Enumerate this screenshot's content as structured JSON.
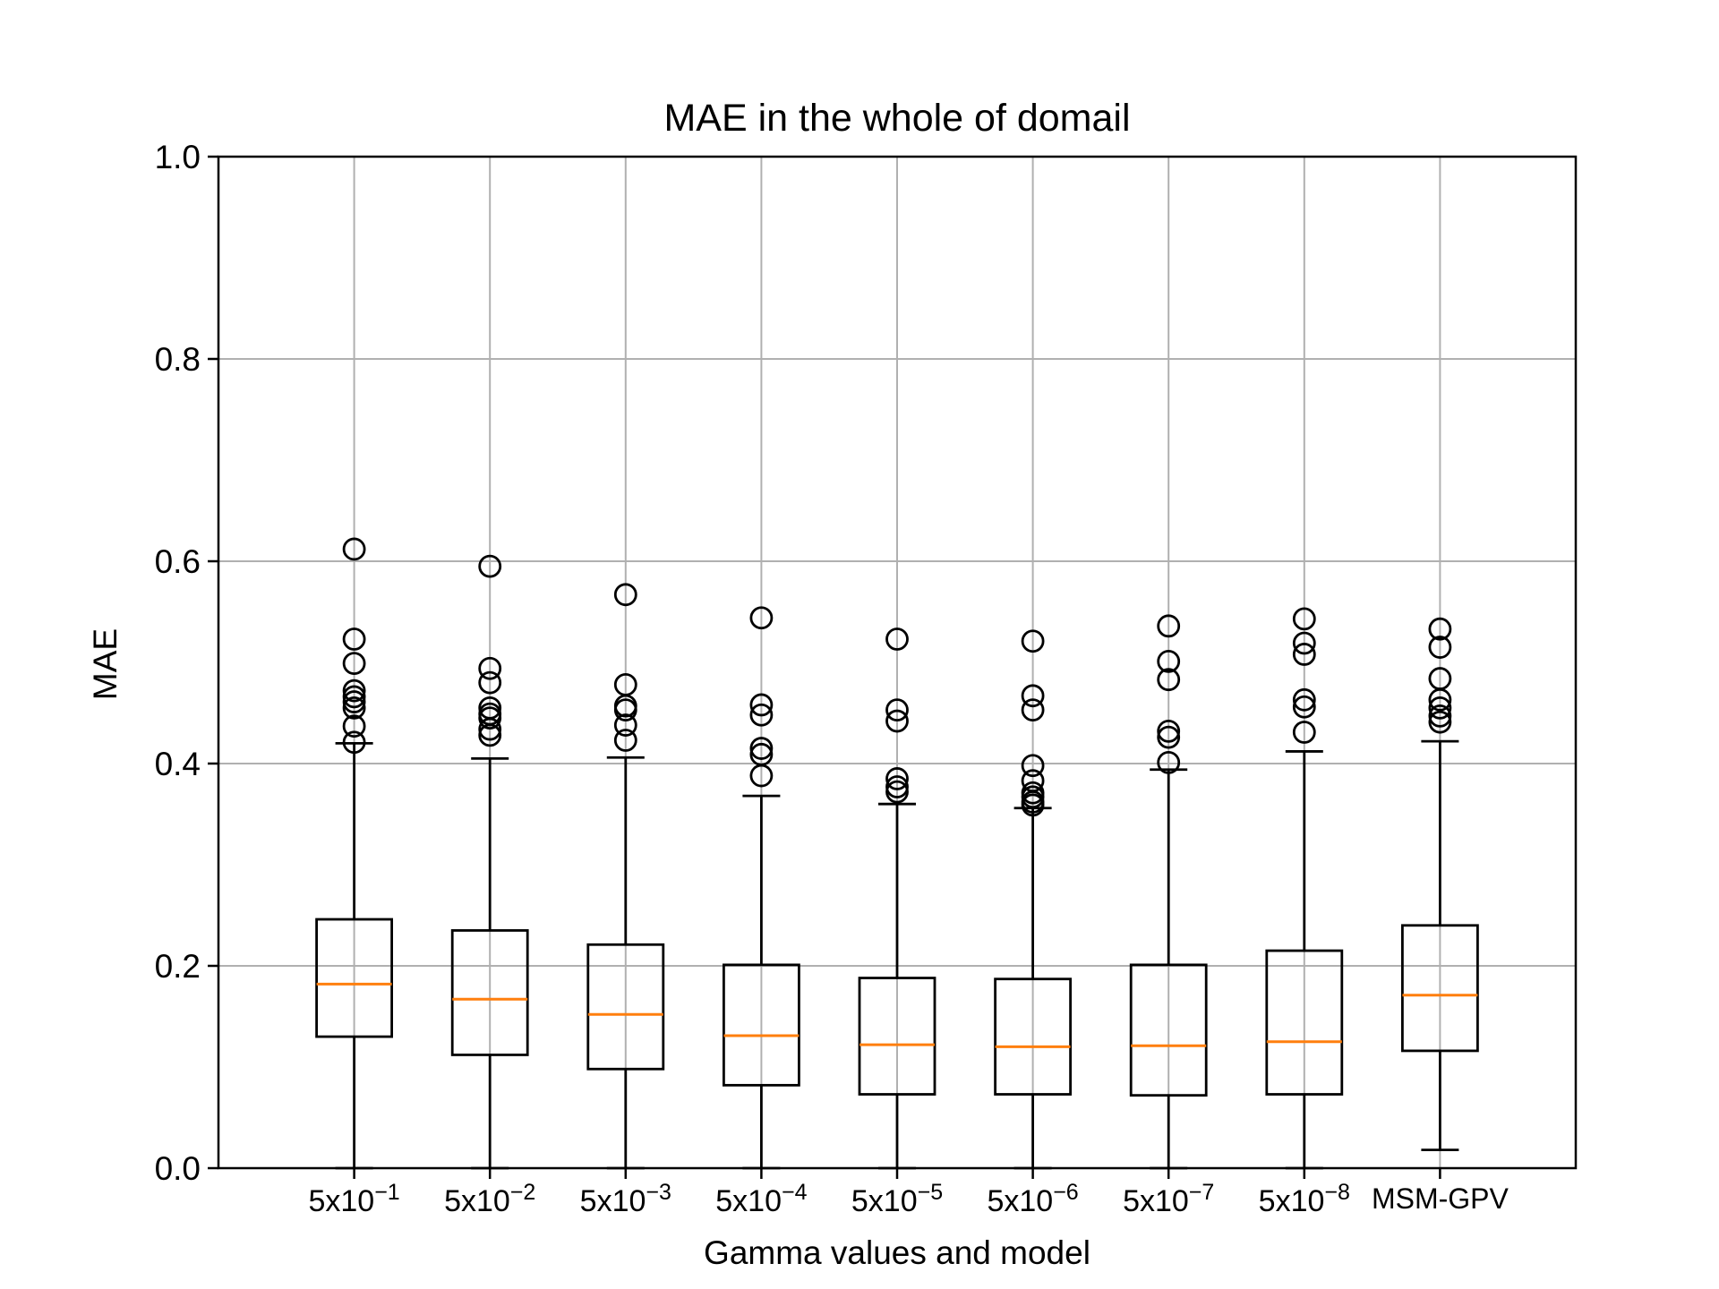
{
  "chart_data": {
    "type": "box",
    "title": "MAE in the whole of domail",
    "xlabel": "Gamma values and model",
    "ylabel": "MAE",
    "ylim": [
      0.0,
      1.0
    ],
    "yticks": [
      "0.0",
      "0.2",
      "0.4",
      "0.6",
      "0.8",
      "1.0"
    ],
    "ytick_values": [
      0.0,
      0.2,
      0.4,
      0.6,
      0.8,
      1.0
    ],
    "grid": true,
    "categories": [
      {
        "base": "5x10",
        "exp": "−1"
      },
      {
        "base": "5x10",
        "exp": "−2"
      },
      {
        "base": "5x10",
        "exp": "−3"
      },
      {
        "base": "5x10",
        "exp": "−4"
      },
      {
        "base": "5x10",
        "exp": "−5"
      },
      {
        "base": "5x10",
        "exp": "−6"
      },
      {
        "base": "5x10",
        "exp": "−7"
      },
      {
        "base": "5x10",
        "exp": "−8"
      },
      {
        "base": "MSM-GPV",
        "exp": ""
      }
    ],
    "boxes": [
      {
        "whislo": 0.0,
        "q1": 0.13,
        "med": 0.182,
        "q3": 0.246,
        "whishi": 0.42,
        "fliers": [
          0.612,
          0.523,
          0.499,
          0.472,
          0.466,
          0.461,
          0.455,
          0.437,
          0.421
        ]
      },
      {
        "whislo": 0.0,
        "q1": 0.112,
        "med": 0.167,
        "q3": 0.235,
        "whishi": 0.405,
        "fliers": [
          0.595,
          0.494,
          0.48,
          0.455,
          0.449,
          0.445,
          0.434,
          0.428
        ]
      },
      {
        "whislo": 0.0,
        "q1": 0.098,
        "med": 0.152,
        "q3": 0.221,
        "whishi": 0.406,
        "fliers": [
          0.567,
          0.478,
          0.457,
          0.453,
          0.438,
          0.423
        ]
      },
      {
        "whislo": 0.0,
        "q1": 0.082,
        "med": 0.131,
        "q3": 0.201,
        "whishi": 0.368,
        "fliers": [
          0.544,
          0.458,
          0.448,
          0.415,
          0.409,
          0.388
        ]
      },
      {
        "whislo": 0.0,
        "q1": 0.073,
        "med": 0.122,
        "q3": 0.188,
        "whishi": 0.36,
        "fliers": [
          0.523,
          0.453,
          0.442,
          0.385,
          0.377,
          0.372
        ]
      },
      {
        "whislo": 0.0,
        "q1": 0.073,
        "med": 0.12,
        "q3": 0.187,
        "whishi": 0.356,
        "fliers": [
          0.521,
          0.467,
          0.453,
          0.398,
          0.383,
          0.371,
          0.367,
          0.362,
          0.359
        ]
      },
      {
        "whislo": 0.0,
        "q1": 0.072,
        "med": 0.121,
        "q3": 0.201,
        "whishi": 0.394,
        "fliers": [
          0.536,
          0.501,
          0.483,
          0.432,
          0.426,
          0.401
        ]
      },
      {
        "whislo": 0.0,
        "q1": 0.073,
        "med": 0.125,
        "q3": 0.215,
        "whishi": 0.412,
        "fliers": [
          0.543,
          0.519,
          0.508,
          0.463,
          0.456,
          0.431
        ]
      },
      {
        "whislo": 0.018,
        "q1": 0.116,
        "med": 0.171,
        "q3": 0.24,
        "whishi": 0.422,
        "fliers": [
          0.533,
          0.515,
          0.484,
          0.463,
          0.455,
          0.447,
          0.441
        ]
      }
    ],
    "colors": {
      "box": "#000000",
      "median": "#ff7f0e",
      "grid": "#b0b0b0",
      "axes": "#000000"
    }
  }
}
